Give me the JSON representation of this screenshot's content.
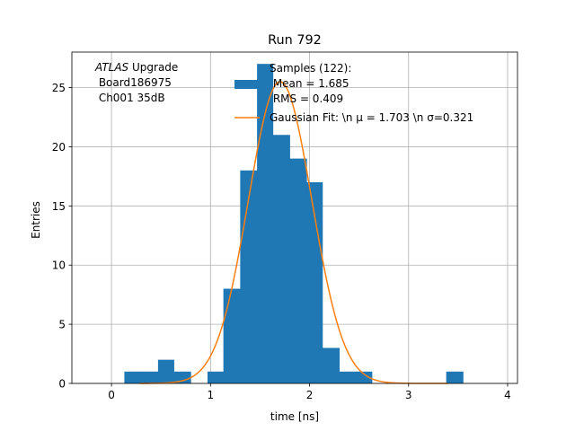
{
  "chart_data": {
    "type": "bar",
    "title": "Run 792",
    "xlabel": "time [ns]",
    "ylabel": "Entries",
    "xlim": [
      -0.4,
      4.1
    ],
    "ylim": [
      0,
      28
    ],
    "xticks": [
      0,
      1,
      2,
      3,
      4
    ],
    "yticks": [
      0,
      5,
      10,
      15,
      20,
      25
    ],
    "grid": true,
    "legend_position": "top-right",
    "annotation_lines": [
      "ATLAS Upgrade",
      " Board186975",
      " Ch001 35dB"
    ],
    "histogram": {
      "name": "Samples (122):\n Mean = 1.685\n RMS = 0.409",
      "color": "#1f77b4",
      "bins": [
        {
          "x0": 0.13,
          "x1": 0.3,
          "count": 1
        },
        {
          "x0": 0.3,
          "x1": 0.47,
          "count": 1
        },
        {
          "x0": 0.47,
          "x1": 0.63,
          "count": 2
        },
        {
          "x0": 0.63,
          "x1": 0.8,
          "count": 1
        },
        {
          "x0": 0.97,
          "x1": 1.13,
          "count": 1
        },
        {
          "x0": 1.13,
          "x1": 1.3,
          "count": 8
        },
        {
          "x0": 1.3,
          "x1": 1.47,
          "count": 18
        },
        {
          "x0": 1.47,
          "x1": 1.63,
          "count": 27
        },
        {
          "x0": 1.63,
          "x1": 1.8,
          "count": 21
        },
        {
          "x0": 1.8,
          "x1": 1.97,
          "count": 19
        },
        {
          "x0": 1.97,
          "x1": 2.13,
          "count": 17
        },
        {
          "x0": 2.13,
          "x1": 2.3,
          "count": 3
        },
        {
          "x0": 2.3,
          "x1": 2.47,
          "count": 1
        },
        {
          "x0": 2.47,
          "x1": 2.63,
          "count": 1
        },
        {
          "x0": 3.38,
          "x1": 3.55,
          "count": 1
        }
      ]
    },
    "fit": {
      "name": "Gaussian Fit: \\n $\\mu$ = 1.703 \\n $\\sigma$=0.321",
      "legend_text": "Gaussian Fit: \\n μ = 1.703 \\n σ=0.321",
      "color": "#ff7f0e",
      "mu": 1.703,
      "sigma": 0.321,
      "amplitude": 25.5,
      "x_range": [
        0.28,
        3.4
      ]
    },
    "legend_lines": [
      "Samples (122):",
      " Mean = 1.685",
      " RMS = 0.409"
    ]
  }
}
